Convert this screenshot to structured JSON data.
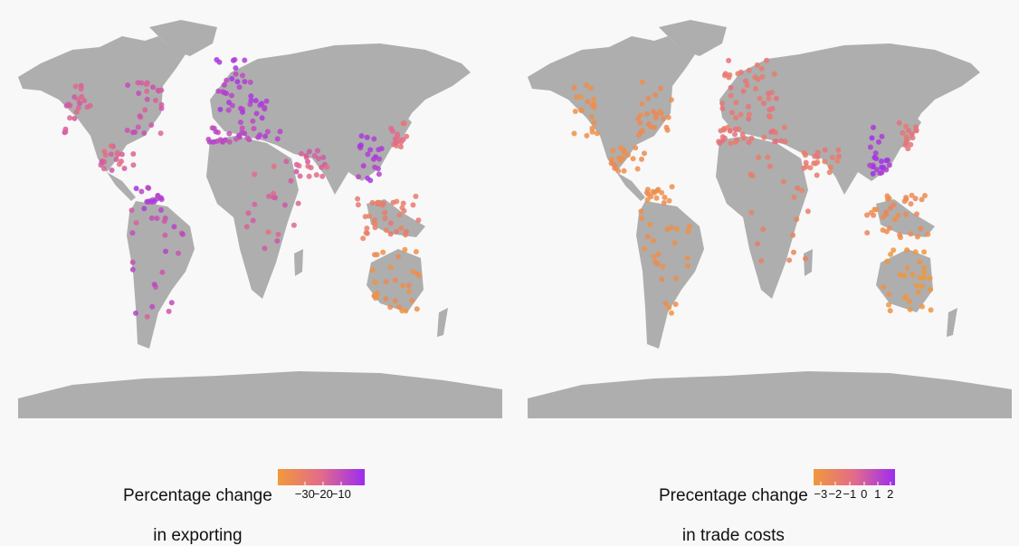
{
  "colors": {
    "background": "#f8f8f8",
    "land": "#aeaeae",
    "scale_low": "#f0993c",
    "scale_mid": "#e26b8a",
    "scale_high": "#9c2df0"
  },
  "panels": [
    {
      "id": "exporting",
      "legend": {
        "title_line1": "Percentage change",
        "title_line2": "in exporting",
        "ticks": [
          "−30",
          "−20",
          "−10"
        ]
      }
    },
    {
      "id": "trade-costs",
      "legend": {
        "title_line1": "Precentage change",
        "title_line2": "in trade costs",
        "ticks": [
          "−3",
          "−2",
          "−1",
          "0",
          "1",
          "2"
        ]
      }
    }
  ]
}
